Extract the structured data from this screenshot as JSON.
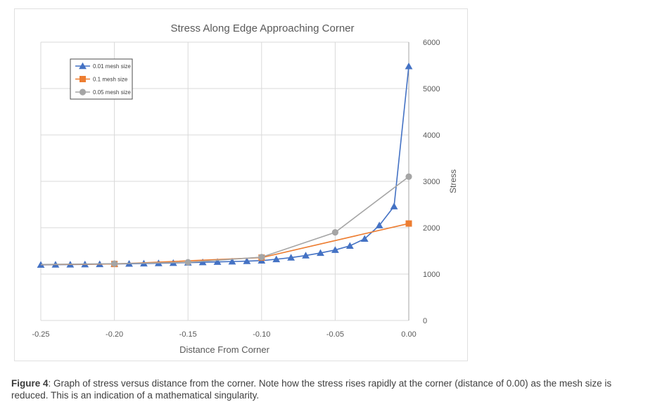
{
  "figure": {
    "title": "Stress Along Edge Approaching Corner"
  },
  "caption": {
    "figure_label": "Figure 4",
    "text": ": Graph of stress versus distance from the corner. Note how the stress rises rapidly at the corner (distance of 0.00) as the mesh size is reduced. This is an indication of a mathematical singularity."
  },
  "colors": {
    "gridline": "#d9d9d9",
    "axis_line": "#a6a6a6",
    "tick_text": "#595959",
    "title_text": "#595959",
    "legend_text": "#404040",
    "legend_border": "#4d4d4d",
    "series_blue": "#4472C4",
    "series_orange": "#ED7D31",
    "series_gray": "#A5A5A5"
  },
  "chart_data": {
    "type": "line",
    "title": "Stress Along Edge Approaching Corner",
    "xlabel": "Distance From Corner",
    "ylabel": "Stress",
    "xlim": [
      -0.25,
      0
    ],
    "ylim": [
      0,
      6000
    ],
    "grid": true,
    "legend_position": "top-left",
    "x_ticks": [
      {
        "value": -0.25,
        "label": "-0.25"
      },
      {
        "value": -0.2,
        "label": "-0.20"
      },
      {
        "value": -0.15,
        "label": "-0.15"
      },
      {
        "value": -0.1,
        "label": "-0.10"
      },
      {
        "value": -0.05,
        "label": "-0.05"
      },
      {
        "value": 0,
        "label": "0.00"
      }
    ],
    "y_ticks": [
      {
        "value": 0,
        "label": "0"
      },
      {
        "value": 1000,
        "label": "1000"
      },
      {
        "value": 2000,
        "label": "2000"
      },
      {
        "value": 3000,
        "label": "3000"
      },
      {
        "value": 4000,
        "label": "4000"
      },
      {
        "value": 5000,
        "label": "5000"
      },
      {
        "value": 6000,
        "label": "6000"
      }
    ],
    "series": [
      {
        "name": "0.01 mesh size",
        "color": "#4472C4",
        "marker": "triangle",
        "marker_at": "all",
        "points": [
          [
            -0.25,
            1200
          ],
          [
            -0.24,
            1203
          ],
          [
            -0.23,
            1206
          ],
          [
            -0.22,
            1210
          ],
          [
            -0.21,
            1214
          ],
          [
            -0.2,
            1218
          ],
          [
            -0.19,
            1223
          ],
          [
            -0.18,
            1228
          ],
          [
            -0.17,
            1234
          ],
          [
            -0.16,
            1240
          ],
          [
            -0.15,
            1247
          ],
          [
            -0.14,
            1254
          ],
          [
            -0.13,
            1262
          ],
          [
            -0.12,
            1271
          ],
          [
            -0.11,
            1280
          ],
          [
            -0.1,
            1290
          ],
          [
            -0.09,
            1320
          ],
          [
            -0.08,
            1355
          ],
          [
            -0.07,
            1400
          ],
          [
            -0.06,
            1455
          ],
          [
            -0.05,
            1520
          ],
          [
            -0.04,
            1610
          ],
          [
            -0.03,
            1760
          ],
          [
            -0.02,
            2050
          ],
          [
            -0.01,
            2460
          ],
          [
            0,
            5480
          ]
        ]
      },
      {
        "name": "0.1 mesh size",
        "color": "#ED7D31",
        "marker": "square",
        "marker_at": [
          -0.2,
          -0.1,
          0
        ],
        "points": [
          [
            -0.25,
            1205
          ],
          [
            -0.2,
            1218
          ],
          [
            -0.1,
            1355
          ],
          [
            0,
            2090
          ]
        ]
      },
      {
        "name": "0.05 mesh size",
        "color": "#A5A5A5",
        "marker": "circle",
        "marker_at": [
          -0.2,
          -0.15,
          -0.1,
          -0.05,
          0
        ],
        "points": [
          [
            -0.25,
            1208
          ],
          [
            -0.2,
            1225
          ],
          [
            -0.15,
            1255
          ],
          [
            -0.1,
            1365
          ],
          [
            -0.05,
            1900
          ],
          [
            0,
            3100
          ]
        ]
      }
    ]
  }
}
